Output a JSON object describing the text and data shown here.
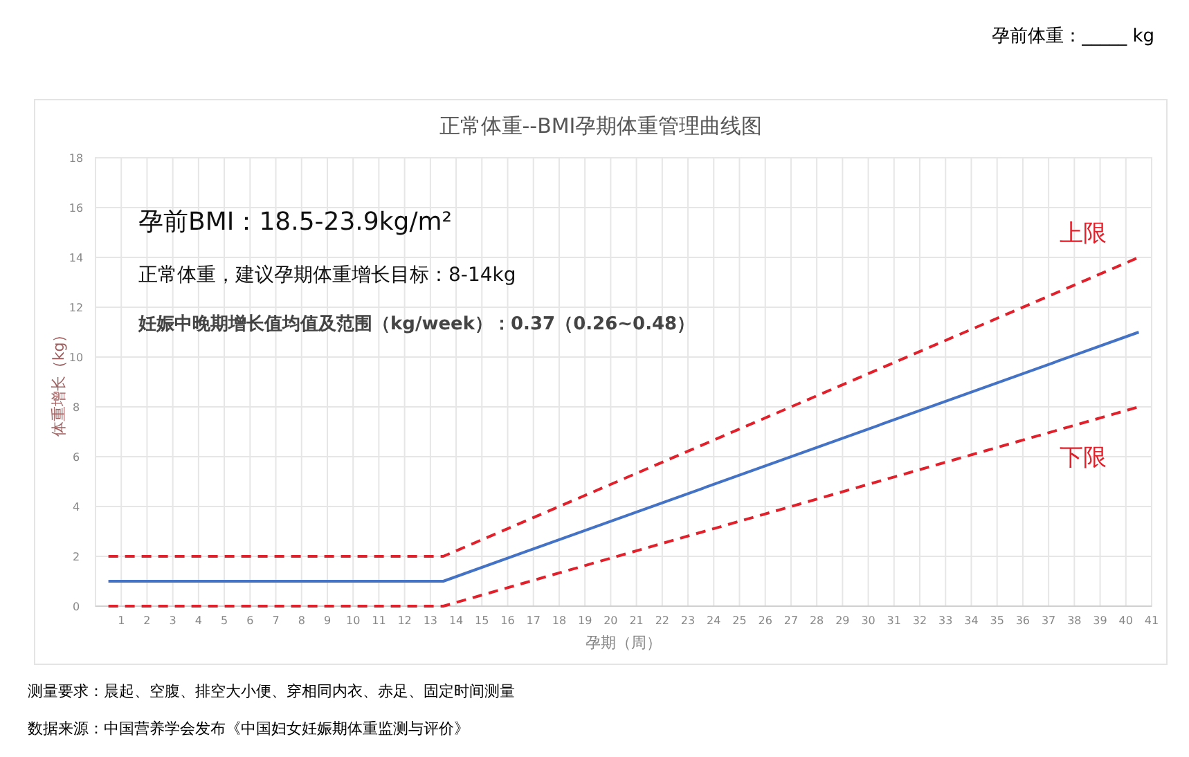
{
  "chart_data": {
    "type": "line",
    "title": "正常体重--BMI孕期体重管理曲线图",
    "xlabel": "孕期（周）",
    "ylabel": "体重增长（kg）",
    "xlim": [
      0,
      41
    ],
    "xticks": [
      1,
      2,
      3,
      4,
      5,
      6,
      7,
      8,
      9,
      10,
      11,
      12,
      13,
      14,
      15,
      16,
      17,
      18,
      19,
      20,
      21,
      22,
      23,
      24,
      25,
      26,
      27,
      28,
      29,
      30,
      31,
      32,
      33,
      34,
      35,
      36,
      37,
      38,
      39,
      40,
      41
    ],
    "ylim": [
      0,
      18
    ],
    "yticks": [
      0,
      2,
      4,
      6,
      8,
      10,
      12,
      14,
      16,
      18
    ],
    "grid": true,
    "series": [
      {
        "color": "#4472c4",
        "line_style": "solid",
        "x": [
          0.5,
          13.5,
          40.5
        ],
        "values": [
          1,
          1,
          11
        ]
      },
      {
        "name": "上限",
        "color": "#e0202a",
        "line_style": "dashed",
        "x": [
          0.5,
          13.5,
          40.5
        ],
        "values": [
          2,
          2,
          14
        ]
      },
      {
        "name": "下限",
        "color": "#e0202a",
        "line_style": "dashed",
        "x": [
          0.5,
          13.5,
          40.5
        ],
        "values": [
          0,
          0,
          8
        ]
      }
    ],
    "annotations": [
      "孕前体重：_____  kg",
      "孕前BMI：18.5-23.9kg/m²",
      "正常体重，建议孕期体重增长目标：8-14kg",
      "妊娠中晚期增长值均值及范围（kg/week）：0.37（0.26~0.48）",
      "测量要求：晨起、空腹、排空大小便、穿相同内衣、赤足、固定时间测量",
      "数据来源：中国营养学会发布《中国妇女妊娠期体重监测与评价》"
    ]
  }
}
